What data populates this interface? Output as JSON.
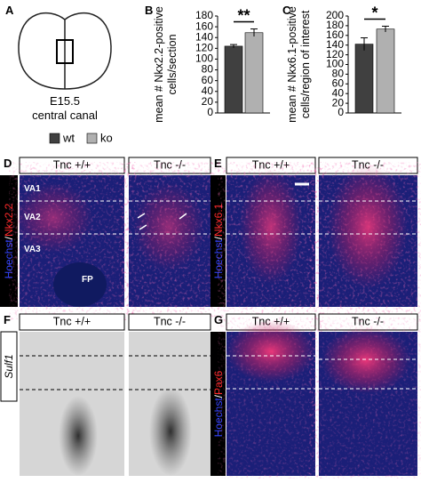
{
  "chart_data": [
    {
      "type": "bar",
      "panel_label": "B",
      "ylabel": [
        "mean # Nkx2.2-positive",
        "cells/section"
      ],
      "categories": [
        null
      ],
      "series": [
        {
          "name": "wt",
          "color": "#404040",
          "values": [
            124
          ],
          "errors": [
            3
          ]
        },
        {
          "name": "ko",
          "color": "#b0b0b0",
          "values": [
            149
          ],
          "errors": [
            7
          ]
        }
      ],
      "ylim": [
        0,
        180
      ],
      "yticks": [
        0,
        20,
        40,
        60,
        80,
        100,
        120,
        140,
        160,
        180
      ],
      "annotation": "**"
    },
    {
      "type": "bar",
      "panel_label": "C",
      "ylabel": [
        "mean # Nkx6.1-positive",
        "cells/region of interest"
      ],
      "categories": [
        null
      ],
      "series": [
        {
          "name": "wt",
          "color": "#404040",
          "values": [
            142
          ],
          "errors": [
            13
          ]
        },
        {
          "name": "ko",
          "color": "#b0b0b0",
          "values": [
            173
          ],
          "errors": [
            6
          ]
        }
      ],
      "ylim": [
        0,
        200
      ],
      "yticks": [
        0,
        20,
        40,
        60,
        80,
        100,
        120,
        140,
        160,
        180,
        200
      ],
      "annotation": "*"
    }
  ],
  "panels": {
    "A": {
      "label": "A",
      "stage": "E15.5",
      "region": "central canal"
    },
    "D": {
      "label": "D",
      "headers": [
        "Tnc +/+",
        "Tnc -/-"
      ],
      "stain": [
        "Hoechst",
        "/",
        "Nkx2.2"
      ],
      "regions": [
        "VA1",
        "VA2",
        "VA3",
        "FP"
      ]
    },
    "E": {
      "label": "E",
      "headers": [
        "Tnc +/+",
        "Tnc -/-"
      ],
      "stain": [
        "Hoechst",
        "/",
        "Nkx6.1"
      ]
    },
    "F": {
      "label": "F",
      "headers": [
        "Tnc +/+",
        "Tnc -/-"
      ],
      "stain": [
        "Sulf1"
      ]
    },
    "G": {
      "label": "G",
      "headers": [
        "Tnc +/+",
        "Tnc -/-"
      ],
      "stain": [
        "Hoechst",
        "/",
        "Pax6"
      ]
    }
  }
}
